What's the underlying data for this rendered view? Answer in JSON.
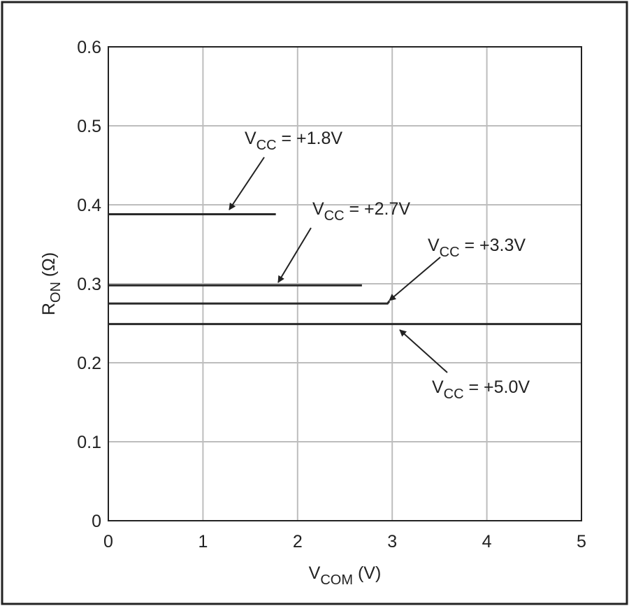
{
  "chart_data": {
    "type": "line",
    "x_label": {
      "main": "V",
      "sub": "COM",
      "rest": " (V)"
    },
    "y_label": {
      "main": "R",
      "sub": "ON",
      "rest": " (Ω)"
    },
    "xlim": [
      0,
      5
    ],
    "xticks": [
      0,
      1,
      2,
      3,
      4,
      5
    ],
    "ylim": [
      0,
      0.6
    ],
    "yticks": [
      0,
      0.1,
      0.2,
      0.3,
      0.4,
      0.5,
      0.6
    ],
    "grid": true,
    "color": "#2a2a2a",
    "series": [
      {
        "label": {
          "main": "V",
          "sub": "CC",
          "rest": " = +1.8V"
        },
        "x": [
          0,
          1.77
        ],
        "values": [
          0.388,
          0.388
        ]
      },
      {
        "label": {
          "main": "V",
          "sub": "CC",
          "rest": " = +2.7V"
        },
        "x": [
          0,
          2.68
        ],
        "values": [
          0.298,
          0.298
        ]
      },
      {
        "label": {
          "main": "V",
          "sub": "CC",
          "rest": " = +3.3V"
        },
        "x": [
          0,
          2.95,
          2.97
        ],
        "values": [
          0.275,
          0.275,
          0.278
        ]
      },
      {
        "label": {
          "main": "V",
          "sub": "CC",
          "rest": " = +5.0V"
        },
        "x": [
          0,
          5
        ],
        "values": [
          0.249,
          0.249
        ]
      }
    ]
  }
}
